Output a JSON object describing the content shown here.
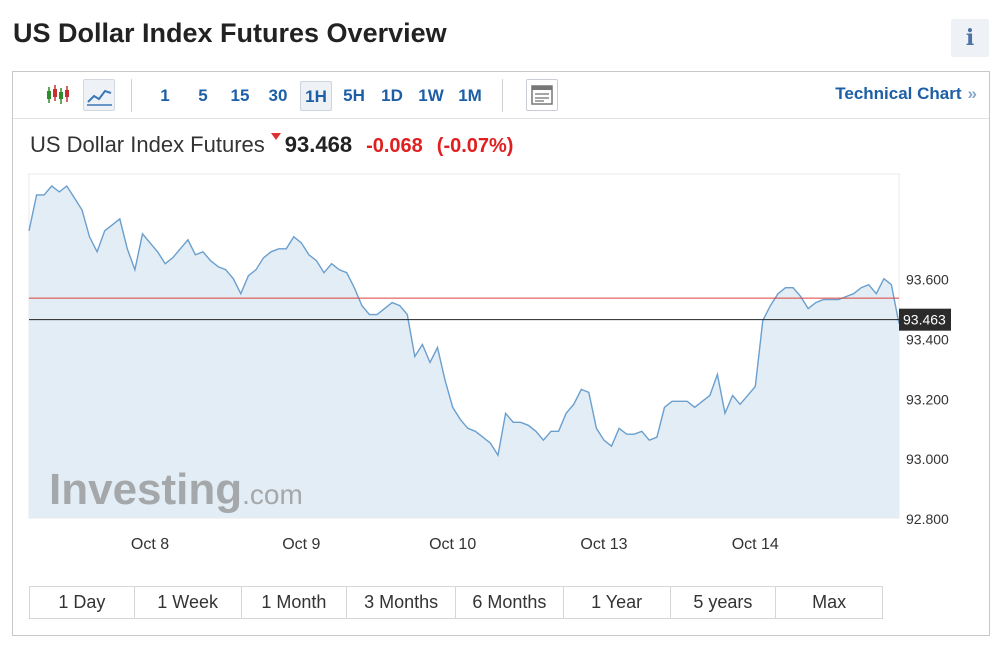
{
  "header": {
    "title": "US Dollar Index Futures Overview",
    "info_label": "i"
  },
  "toolbar": {
    "intervals": [
      "1",
      "5",
      "15",
      "30",
      "1H",
      "5H",
      "1D",
      "1W",
      "1M"
    ],
    "active_interval": "1H",
    "technical_chart_label": "Technical Chart",
    "technical_chart_arrow": "»"
  },
  "quote": {
    "name": "US Dollar Index Futures",
    "price": "93.468",
    "change": "-0.068",
    "change_pct": "(-0.07%)",
    "direction": "down"
  },
  "colors": {
    "line": "#6a9fce",
    "area": "#e3edf5",
    "down": "#e02020",
    "ref_line": "#d94040",
    "link": "#1d5fa6"
  },
  "watermark": {
    "brand": "Investing",
    "suffix": ".com"
  },
  "chart_data": {
    "type": "area",
    "ylim": [
      92.8,
      93.95
    ],
    "y_ticks": [
      "93.600",
      "93.400",
      "93.200",
      "93.000",
      "92.800"
    ],
    "y_tick_values": [
      93.6,
      93.4,
      93.2,
      93.0,
      92.8
    ],
    "x_ticks": [
      "Oct 8",
      "Oct 9",
      "Oct 10",
      "Oct 13",
      "Oct 14"
    ],
    "x_tick_index": [
      16,
      36,
      56,
      76,
      96
    ],
    "last_price_label": "93.463",
    "last_price": 93.463,
    "reference_line": 93.535,
    "series": [
      {
        "values": [
          93.76,
          93.88,
          93.88,
          93.91,
          93.89,
          93.91,
          93.87,
          93.83,
          93.74,
          93.69,
          93.76,
          93.78,
          93.8,
          93.7,
          93.63,
          93.75,
          93.72,
          93.69,
          93.65,
          93.67,
          93.7,
          93.73,
          93.68,
          93.69,
          93.66,
          93.64,
          93.63,
          93.6,
          93.55,
          93.61,
          93.63,
          93.67,
          93.69,
          93.7,
          93.7,
          93.74,
          93.72,
          93.68,
          93.66,
          93.62,
          93.65,
          93.63,
          93.62,
          93.57,
          93.51,
          93.48,
          93.48,
          93.5,
          93.52,
          93.51,
          93.48,
          93.34,
          93.38,
          93.32,
          93.37,
          93.26,
          93.17,
          93.13,
          93.1,
          93.09,
          93.07,
          93.05,
          93.01,
          93.15,
          93.12,
          93.12,
          93.11,
          93.09,
          93.06,
          93.09,
          93.09,
          93.15,
          93.18,
          93.23,
          93.22,
          93.1,
          93.06,
          93.04,
          93.1,
          93.08,
          93.08,
          93.09,
          93.06,
          93.07,
          93.17,
          93.19,
          93.19,
          93.19,
          93.17,
          93.19,
          93.21,
          93.28,
          93.15,
          93.21,
          93.18,
          93.21,
          93.24,
          93.46,
          93.51,
          93.55,
          93.57,
          93.57,
          93.54,
          93.5,
          93.52,
          93.53,
          93.53,
          93.53,
          93.54,
          93.55,
          93.57,
          93.58,
          93.55,
          93.6,
          93.58,
          93.45
        ]
      }
    ]
  },
  "ranges": [
    "1 Day",
    "1 Week",
    "1 Month",
    "3 Months",
    "6 Months",
    "1 Year",
    "5 years",
    "Max"
  ]
}
